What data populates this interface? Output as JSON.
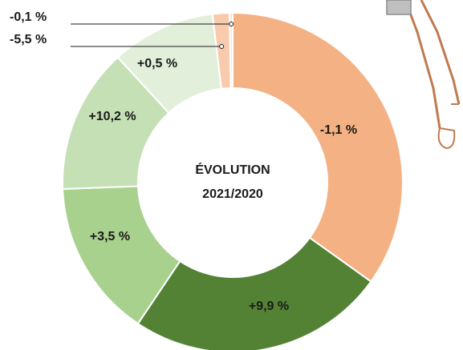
{
  "chart_data": {
    "type": "donut",
    "center_title": "ÉVOLUTION",
    "center_subtitle": "2021/2020",
    "categories": [
      "-1,1 %",
      "+9,9 %",
      "+3,5 %",
      "+10,2 %",
      "+0,5 %",
      "-5,5 %",
      "-0,1 %"
    ],
    "values": [
      34.9,
      24.5,
      15,
      13.8,
      9.9,
      1.6,
      0.3
    ],
    "colors": [
      "#f4b183",
      "#548235",
      "#a9d18e",
      "#c5e0b4",
      "#e2efda",
      "#f8cbad",
      "#fbe5d6"
    ]
  }
}
